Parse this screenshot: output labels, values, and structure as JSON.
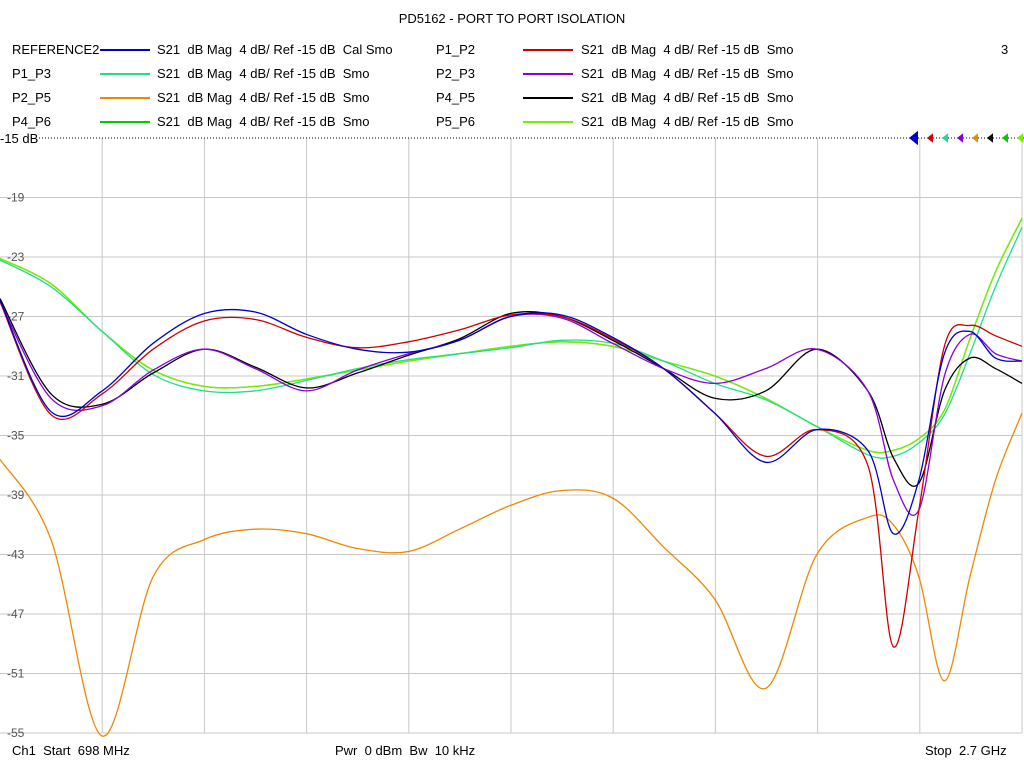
{
  "title": "PD5162 - PORT TO PORT ISOLATION",
  "channel_number": "3",
  "ref_level_label": "-15 dB",
  "footer": {
    "start": "Ch1  Start  698 MHz",
    "mid": "Pwr  0 dBm  Bw  10 kHz",
    "stop": "Stop  2.7 GHz"
  },
  "legend": [
    {
      "name": "REFERENCE2",
      "desc": "S21  dB Mag  4 dB/ Ref -15 dB  Cal Smo",
      "color": "#0000cc"
    },
    {
      "name": "P1_P2",
      "desc": "S21  dB Mag  4 dB/ Ref -15 dB  Smo",
      "color": "#cc0000"
    },
    {
      "name": "P1_P3",
      "desc": "S21  dB Mag  4 dB/ Ref -15 dB  Smo",
      "color": "#22dd88"
    },
    {
      "name": "P2_P3",
      "desc": "S21  dB Mag  4 dB/ Ref -15 dB  Smo",
      "color": "#8800dd"
    },
    {
      "name": "P2_P5",
      "desc": "S21  dB Mag  4 dB/ Ref -15 dB  Smo",
      "color": "#ee8800"
    },
    {
      "name": "P4_P5",
      "desc": "S21  dB Mag  4 dB/ Ref -15 dB  Smo",
      "color": "#000000"
    },
    {
      "name": "P4_P6",
      "desc": "S21  dB Mag  4 dB/ Ref -15 dB  Smo",
      "color": "#00cc00"
    },
    {
      "name": "P5_P6",
      "desc": "S21  dB Mag  4 dB/ Ref -15 dB  Smo",
      "color": "#77ee00"
    }
  ],
  "chart_data": {
    "type": "line",
    "title": "PD5162 - PORT TO PORT ISOLATION",
    "xlabel": "",
    "ylabel": "",
    "x_unit": "MHz",
    "xlim": [
      698,
      2700
    ],
    "ylim": [
      -55,
      -15
    ],
    "y_ticks": [
      -19,
      -23,
      -27,
      -31,
      -35,
      -39,
      -43,
      -47,
      -51,
      -55
    ],
    "grid": true,
    "legend_position": "top",
    "x": [
      698,
      798,
      898,
      998,
      1098,
      1198,
      1298,
      1398,
      1498,
      1598,
      1698,
      1798,
      1898,
      1998,
      2098,
      2198,
      2298,
      2398,
      2448,
      2498,
      2548,
      2598,
      2648,
      2700
    ],
    "series": [
      {
        "name": "REFERENCE2",
        "color": "#0000cc",
        "values": [
          -25.9,
          -33.4,
          -32.0,
          -28.8,
          -26.8,
          -26.7,
          -28.2,
          -29.2,
          -29.4,
          -28.6,
          -27.0,
          -26.9,
          -28.4,
          -30.5,
          -33.5,
          -36.8,
          -34.6,
          -36.0,
          -41.6,
          -38.0,
          -29.5,
          -28.0,
          -29.8,
          -30.0
        ]
      },
      {
        "name": "P1_P2",
        "color": "#cc0000",
        "values": [
          -26.0,
          -33.6,
          -32.2,
          -29.2,
          -27.3,
          -27.2,
          -28.4,
          -29.1,
          -28.7,
          -27.9,
          -26.9,
          -27.0,
          -28.5,
          -30.5,
          -33.5,
          -36.4,
          -34.6,
          -37.0,
          -49.2,
          -40.0,
          -29.0,
          -27.6,
          -28.3,
          -29.0
        ]
      },
      {
        "name": "P1_P3",
        "color": "#22dd88",
        "values": [
          -23.2,
          -25.0,
          -28.0,
          -30.9,
          -32.0,
          -32.0,
          -31.3,
          -30.5,
          -29.9,
          -29.5,
          -29.1,
          -28.6,
          -28.8,
          -30.0,
          -31.5,
          -32.6,
          -34.4,
          -36.3,
          -36.4,
          -35.5,
          -33.6,
          -29.5,
          -25.0,
          -21.0
        ]
      },
      {
        "name": "P2_P3",
        "color": "#8800dd",
        "values": [
          -26.0,
          -32.5,
          -33.0,
          -30.6,
          -29.2,
          -30.5,
          -32.0,
          -30.6,
          -29.5,
          -28.6,
          -27.0,
          -27.1,
          -28.8,
          -30.5,
          -31.5,
          -30.5,
          -29.2,
          -32.0,
          -38.0,
          -40.0,
          -31.0,
          -28.2,
          -29.5,
          -30.0
        ]
      },
      {
        "name": "P2_P5",
        "color": "#ee8800",
        "values": [
          -36.6,
          -42.0,
          -55.2,
          -44.5,
          -42.0,
          -41.3,
          -41.6,
          -42.6,
          -42.8,
          -41.3,
          -39.7,
          -38.7,
          -39.2,
          -42.5,
          -46.0,
          -52.0,
          -43.0,
          -40.5,
          -41.0,
          -44.5,
          -51.5,
          -44.5,
          -38.0,
          -33.5
        ]
      },
      {
        "name": "P4_P5",
        "color": "#000000",
        "values": [
          -25.8,
          -32.2,
          -32.9,
          -30.8,
          -29.2,
          -30.4,
          -31.8,
          -30.8,
          -29.6,
          -28.5,
          -26.8,
          -27.0,
          -28.6,
          -30.5,
          -32.5,
          -32.0,
          -29.2,
          -32.0,
          -36.5,
          -38.2,
          -32.0,
          -29.8,
          -30.5,
          -31.5
        ]
      },
      {
        "name": "P4_P6",
        "color": "#00cc00",
        "values": [
          -23.1,
          -24.8,
          -28.0,
          -30.6,
          -31.7,
          -31.7,
          -31.2,
          -30.6,
          -30.0,
          -29.5,
          -29.0,
          -28.7,
          -29.0,
          -30.0,
          -31.0,
          -32.5,
          -34.4,
          -36.0,
          -36.0,
          -35.2,
          -33.3,
          -28.5,
          -24.0,
          -20.4
        ]
      },
      {
        "name": "P5_P6",
        "color": "#77ee00",
        "values": [
          -23.1,
          -24.8,
          -28.0,
          -30.6,
          -31.7,
          -31.7,
          -31.2,
          -30.6,
          -30.0,
          -29.5,
          -29.0,
          -28.7,
          -29.0,
          -30.0,
          -31.0,
          -32.5,
          -34.4,
          -36.0,
          -36.0,
          -35.2,
          -33.3,
          -28.5,
          -24.0,
          -20.4
        ]
      }
    ]
  }
}
